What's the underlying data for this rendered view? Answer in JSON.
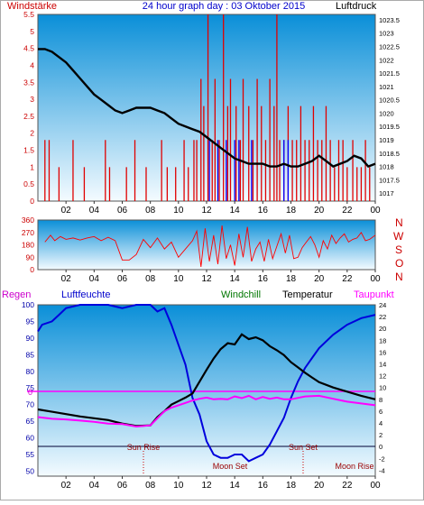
{
  "header": {
    "left_label": "Windstärke",
    "title": "24 hour graph day : 03 Oktober 2015",
    "right_label": "Luftdruck"
  },
  "compass_labels": [
    "N",
    "W",
    "S",
    "O",
    "N"
  ],
  "bottom_legend": {
    "regen": "Regen",
    "luftfeuchte": "Luftfeuchte",
    "windchill": "Windchill",
    "temperatur": "Temperatur",
    "taupunkt": "Taupunkt"
  },
  "annotations": {
    "sun_rise": "Sun Rise",
    "sun_set": "Sun Set",
    "moon_set": "Moon Set",
    "moon_rise": "Moon Rise",
    "regen_zero": "0"
  },
  "colors": {
    "panel_top": "#0a8fd8",
    "panel_bottom": "#f4fbff",
    "axis_left": "#cc0000",
    "title": "#0000cc",
    "wind_bars": "#e00000",
    "gust_bars": "#0000ff",
    "pressure": "#000000",
    "direction": "#ff0000",
    "humidity": "#0000dd",
    "temperature": "#000000",
    "dewpoint": "#ff00ff",
    "rain_zero": "#ff00ff"
  },
  "chart_data": [
    {
      "type": "bar",
      "title": "24 hour graph day : 03 Oktober 2015",
      "ylabel": "Windstärke",
      "y2label": "Luftdruck",
      "xticks": [
        "02",
        "04",
        "06",
        "08",
        "10",
        "12",
        "14",
        "16",
        "18",
        "20",
        "22",
        "00"
      ],
      "yticks_left": [
        "0",
        "0.5",
        "1",
        "1.5",
        "2",
        "2.5",
        "3",
        "3.5",
        "4",
        "4.5",
        "5",
        "5.5"
      ],
      "yticks_right": [
        "1017",
        "1017.5",
        "1018",
        "1018.5",
        "1019",
        "1019.5",
        "1020",
        "1020.5",
        "1021",
        "1021.5",
        "1022",
        "1022.5",
        "1023",
        "1023.5"
      ],
      "ylim": [
        0,
        5.5
      ],
      "y2lim": [
        1016.7,
        1023.7
      ],
      "series": [
        {
          "name": "Windstärke",
          "x": [
            0.5,
            0.8,
            1.5,
            2.5,
            3.3,
            4.8,
            5.1,
            6.3,
            6.9,
            7.7,
            8.8,
            9.2,
            9.8,
            10.4,
            10.7,
            11.1,
            11.3,
            11.6,
            11.8,
            12.1,
            12.4,
            12.6,
            12.9,
            13.2,
            13.5,
            13.7,
            14.1,
            14.4,
            14.6,
            15.0,
            15.3,
            15.6,
            15.9,
            16.2,
            16.5,
            16.8,
            17.0,
            17.2,
            17.5,
            17.8,
            18.1,
            18.4,
            18.7,
            19.0,
            19.3,
            19.6,
            19.9,
            20.2,
            20.5,
            20.8,
            21.1,
            21.4,
            21.7,
            22.0,
            22.4,
            22.7,
            23.0,
            23.3,
            23.6
          ],
          "values": [
            1.8,
            1.8,
            1.0,
            1.8,
            1.0,
            1.8,
            1.0,
            1.0,
            1.8,
            1.0,
            1.8,
            1.0,
            1.0,
            1.8,
            1.0,
            1.8,
            1.8,
            3.6,
            2.8,
            5.5,
            1.8,
            3.6,
            1.8,
            5.5,
            2.8,
            3.6,
            2.8,
            1.8,
            3.6,
            2.8,
            1.8,
            3.6,
            2.8,
            1.8,
            3.6,
            2.8,
            5.5,
            1.8,
            1.8,
            2.8,
            1.8,
            1.8,
            2.8,
            1.8,
            1.8,
            2.8,
            1.8,
            1.8,
            2.8,
            1.8,
            1.0,
            1.8,
            1.8,
            1.0,
            1.8,
            1.0,
            1.0,
            1.8,
            1.0
          ]
        },
        {
          "name": "Böen",
          "x": [
            12.2,
            12.8,
            13.4,
            14.0,
            14.3,
            15.2,
            17.5,
            17.8
          ],
          "values": [
            1.8,
            1.8,
            1.8,
            1.8,
            1.8,
            1.8,
            1.8,
            1.8
          ]
        },
        {
          "name": "Luftdruck",
          "x": [
            0,
            0.5,
            1,
            1.5,
            2,
            2.5,
            3,
            3.5,
            4,
            4.5,
            5,
            5.5,
            6,
            6.5,
            7,
            7.5,
            8,
            8.5,
            9,
            9.5,
            10,
            10.5,
            11,
            11.5,
            12,
            12.5,
            13,
            13.5,
            14,
            14.5,
            15,
            15.5,
            16,
            16.5,
            17,
            17.5,
            18,
            18.5,
            19,
            19.5,
            20,
            20.5,
            21,
            21.5,
            22,
            22.5,
            23,
            23.5,
            24
          ],
          "values": [
            1022.4,
            1022.4,
            1022.3,
            1022.1,
            1021.9,
            1021.6,
            1021.3,
            1021.0,
            1020.7,
            1020.5,
            1020.3,
            1020.1,
            1020.0,
            1020.1,
            1020.2,
            1020.2,
            1020.2,
            1020.1,
            1020.0,
            1019.8,
            1019.6,
            1019.5,
            1019.4,
            1019.3,
            1019.1,
            1018.9,
            1018.7,
            1018.5,
            1018.3,
            1018.2,
            1018.1,
            1018.1,
            1018.1,
            1018.0,
            1018.0,
            1018.1,
            1018.0,
            1018.0,
            1018.1,
            1018.2,
            1018.4,
            1018.2,
            1018.0,
            1018.1,
            1018.2,
            1018.4,
            1018.3,
            1018.0,
            1018.1
          ]
        }
      ]
    },
    {
      "type": "line",
      "xticks": [
        "02",
        "04",
        "06",
        "08",
        "10",
        "12",
        "14",
        "16",
        "18",
        "20",
        "22",
        "00"
      ],
      "yticks": [
        "0",
        "90",
        "180",
        "270",
        "360"
      ],
      "ylim": [
        0,
        360
      ],
      "series": [
        {
          "name": "Windrichtung",
          "x": [
            0.5,
            0.9,
            1.2,
            1.6,
            2.0,
            2.5,
            3.0,
            3.5,
            4.0,
            4.5,
            5.0,
            5.5,
            6.0,
            6.5,
            7.0,
            7.5,
            8.0,
            8.5,
            9.0,
            9.5,
            10.0,
            10.5,
            11.0,
            11.3,
            11.6,
            11.9,
            12.2,
            12.5,
            12.8,
            13.1,
            13.4,
            13.7,
            14.0,
            14.3,
            14.6,
            14.9,
            15.2,
            15.5,
            15.8,
            16.1,
            16.4,
            16.7,
            17.0,
            17.3,
            17.6,
            17.9,
            18.2,
            18.5,
            18.8,
            19.1,
            19.4,
            19.7,
            20.0,
            20.3,
            20.6,
            20.9,
            21.2,
            21.5,
            21.8,
            22.1,
            22.4,
            22.7,
            23.0,
            23.3,
            23.6,
            24.0
          ],
          "values": [
            200,
            250,
            210,
            240,
            220,
            230,
            215,
            230,
            240,
            210,
            235,
            210,
            70,
            70,
            110,
            220,
            160,
            230,
            150,
            200,
            90,
            150,
            210,
            280,
            20,
            300,
            60,
            250,
            40,
            320,
            80,
            180,
            30,
            260,
            90,
            310,
            60,
            150,
            200,
            60,
            220,
            80,
            170,
            260,
            120,
            250,
            80,
            90,
            160,
            200,
            240,
            180,
            90,
            210,
            150,
            250,
            190,
            230,
            260,
            200,
            220,
            230,
            270,
            210,
            220,
            250
          ]
        }
      ]
    },
    {
      "type": "line",
      "xticks": [
        "02",
        "04",
        "06",
        "08",
        "10",
        "12",
        "14",
        "16",
        "18",
        "20",
        "22",
        "00"
      ],
      "yticks_left": [
        "50",
        "55",
        "60",
        "65",
        "70",
        "75",
        "80",
        "85",
        "90",
        "95",
        "100"
      ],
      "yticks_right": [
        "-4",
        "-2",
        "0",
        "2",
        "4",
        "6",
        "8",
        "10",
        "12",
        "14",
        "16",
        "18",
        "20",
        "22",
        "24"
      ],
      "ylim": [
        48.5,
        100
      ],
      "y2lim": [
        -5,
        24
      ],
      "series": [
        {
          "name": "Luftfeuchte",
          "x": [
            0,
            0.3,
            1,
            1.5,
            2,
            3,
            3.5,
            5,
            6,
            7,
            8,
            8.5,
            9,
            9.5,
            10,
            10.5,
            11,
            11.5,
            12,
            12.5,
            13,
            13.5,
            14,
            14.5,
            15,
            15.5,
            16,
            16.5,
            17,
            17.5,
            18,
            18.5,
            19,
            19.5,
            20,
            21,
            22,
            23,
            24
          ],
          "values": [
            92,
            94,
            95,
            97,
            99,
            100,
            100,
            100,
            99,
            100,
            100,
            98,
            99,
            94,
            88,
            82,
            72,
            67,
            59,
            55,
            54,
            54,
            55,
            55,
            53,
            54,
            55,
            58,
            62,
            66,
            72,
            77,
            81,
            84,
            87,
            91,
            94,
            96,
            97
          ]
        },
        {
          "name": "Temperatur",
          "x": [
            0,
            1,
            2,
            3,
            4,
            5,
            6,
            7,
            8,
            8.5,
            9,
            9.5,
            10,
            10.5,
            11,
            11.5,
            12,
            12.5,
            13,
            13.5,
            14,
            14.5,
            15,
            15.5,
            16,
            16.5,
            17,
            17.5,
            18,
            18.5,
            19,
            19.5,
            20,
            21,
            22,
            23,
            24
          ],
          "values": [
            6.3,
            5.9,
            5.5,
            5.1,
            4.8,
            4.5,
            3.9,
            3.5,
            3.6,
            5.0,
            6.0,
            7.1,
            7.7,
            8.3,
            9.0,
            11.0,
            13.0,
            14.9,
            16.5,
            17.5,
            17.3,
            19.0,
            18.2,
            18.5,
            18.0,
            17.0,
            16.3,
            15.5,
            14.3,
            13.4,
            12.5,
            11.7,
            10.9,
            10.0,
            9.3,
            8.6,
            8.0
          ]
        },
        {
          "name": "Taupunkt",
          "x": [
            0,
            1,
            2,
            3,
            4,
            5,
            6,
            7,
            8,
            8.5,
            9,
            9.5,
            10,
            10.5,
            11,
            11.5,
            12,
            12.5,
            13,
            13.5,
            14,
            14.5,
            15,
            15.5,
            16,
            16.5,
            17,
            17.5,
            18,
            19,
            20,
            21,
            22,
            23,
            24
          ],
          "values": [
            5.0,
            4.7,
            4.6,
            4.4,
            4.2,
            3.9,
            3.8,
            3.4,
            3.6,
            4.8,
            6.0,
            6.6,
            7.0,
            7.4,
            7.8,
            8.1,
            8.3,
            8.0,
            8.1,
            8.0,
            8.5,
            8.2,
            8.6,
            8.0,
            8.4,
            8.1,
            8.3,
            8.0,
            8.0,
            8.5,
            8.6,
            8.1,
            7.6,
            7.3,
            7.0
          ]
        },
        {
          "name": "Regen",
          "x": [
            0,
            24
          ],
          "values": [
            0,
            0
          ]
        }
      ]
    }
  ]
}
